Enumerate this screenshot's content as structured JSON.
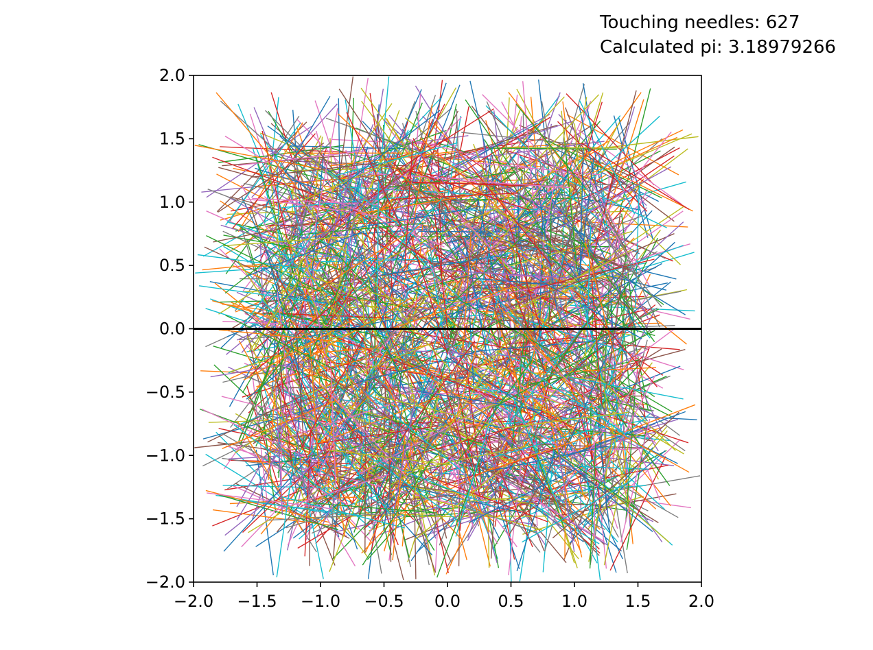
{
  "info": {
    "touching_label": "Touching needles: 627",
    "pi_label": "Calculated pi: 3.18979266"
  },
  "chart_data": {
    "type": "line",
    "title": "",
    "xlabel": "",
    "ylabel": "",
    "xlim": [
      -2.0,
      2.0
    ],
    "ylim": [
      -2.0,
      2.0
    ],
    "grid": false,
    "legend": "none",
    "xticks": [
      -2.0,
      -1.5,
      -1.0,
      -0.5,
      0.0,
      0.5,
      1.0,
      1.5,
      2.0
    ],
    "xtick_labels": [
      "−2.0",
      "−1.5",
      "−1.0",
      "−0.5",
      "0.0",
      "0.5",
      "1.0",
      "1.5",
      "2.0"
    ],
    "yticks": [
      2.0,
      1.5,
      1.0,
      0.5,
      0.0,
      -0.5,
      -1.0,
      -1.5,
      -2.0
    ],
    "ytick_labels": [
      "2.0",
      "1.5",
      "1.0",
      "0.5",
      "0.0",
      "−0.5",
      "−1.0",
      "−1.5",
      "−2.0"
    ],
    "reference_line": {
      "y": 0.0,
      "color": "#000000"
    },
    "needle_count": 2000,
    "needle_length": 1.0,
    "needle_center_range": [
      -1.5,
      1.5
    ],
    "touching_needles": 627,
    "calculated_pi": 3.18979266,
    "palette": [
      "#1f77b4",
      "#ff7f0e",
      "#2ca02c",
      "#d62728",
      "#9467bd",
      "#8c564b",
      "#e377c2",
      "#7f7f7f",
      "#bcbd22",
      "#17becf"
    ]
  }
}
